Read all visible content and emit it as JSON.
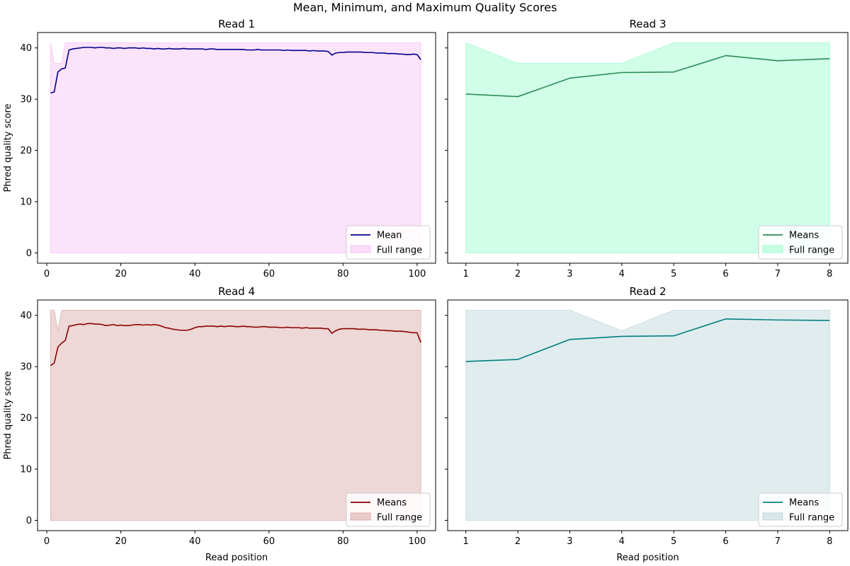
{
  "figure": {
    "title": "Mean, Minimum, and Maximum Quality Scores"
  },
  "chart_data": [
    {
      "type": "line",
      "panel": "top-left",
      "title": "Read 1",
      "xlabel": "",
      "ylabel": "Phred quality score",
      "xlim": [
        -2.5,
        105
      ],
      "ylim": [
        -2,
        43
      ],
      "xticks": [
        0,
        20,
        40,
        60,
        80,
        100
      ],
      "yticks": [
        0,
        10,
        20,
        30,
        40
      ],
      "color": "#00008b",
      "fill_color": "#f4aef0",
      "legend_position": "lower-right",
      "series": [
        {
          "name": "Mean",
          "x": [
            1,
            2,
            3,
            4,
            5,
            6,
            7,
            8,
            9,
            10,
            11,
            12,
            13,
            14,
            15,
            16,
            17,
            18,
            19,
            20,
            21,
            22,
            23,
            24,
            25,
            26,
            27,
            28,
            29,
            30,
            31,
            32,
            33,
            34,
            35,
            36,
            37,
            38,
            39,
            40,
            41,
            42,
            43,
            44,
            45,
            46,
            47,
            48,
            49,
            50,
            51,
            52,
            53,
            54,
            55,
            56,
            57,
            58,
            59,
            60,
            61,
            62,
            63,
            64,
            65,
            66,
            67,
            68,
            69,
            70,
            71,
            72,
            73,
            74,
            75,
            76,
            77,
            78,
            79,
            80,
            81,
            82,
            83,
            84,
            85,
            86,
            87,
            88,
            89,
            90,
            91,
            92,
            93,
            94,
            95,
            96,
            97,
            98,
            99,
            100,
            101
          ],
          "values": [
            31.2,
            31.4,
            35.3,
            35.9,
            36.1,
            39.6,
            39.8,
            39.9,
            40.0,
            40.1,
            40.1,
            40.1,
            40.0,
            40.1,
            40.1,
            40.0,
            40.0,
            39.9,
            40.0,
            40.0,
            39.9,
            40.0,
            40.0,
            40.0,
            39.9,
            40.0,
            39.9,
            39.9,
            39.8,
            39.9,
            39.8,
            39.8,
            39.9,
            39.8,
            39.8,
            39.8,
            39.9,
            39.8,
            39.8,
            39.8,
            39.8,
            39.8,
            39.7,
            39.8,
            39.8,
            39.7,
            39.7,
            39.7,
            39.7,
            39.7,
            39.7,
            39.7,
            39.7,
            39.6,
            39.6,
            39.6,
            39.7,
            39.6,
            39.6,
            39.6,
            39.6,
            39.6,
            39.6,
            39.5,
            39.6,
            39.5,
            39.5,
            39.5,
            39.5,
            39.5,
            39.4,
            39.5,
            39.4,
            39.4,
            39.4,
            39.3,
            38.6,
            39.0,
            39.1,
            39.1,
            39.2,
            39.2,
            39.2,
            39.2,
            39.2,
            39.1,
            39.1,
            39.1,
            39.0,
            39.0,
            39.0,
            38.9,
            38.9,
            38.9,
            38.8,
            38.8,
            38.7,
            38.7,
            38.8,
            38.7,
            37.7
          ]
        }
      ],
      "range_label": "Full range",
      "range_min": {
        "x": [
          1,
          101
        ],
        "values": [
          0,
          0
        ]
      },
      "range_max": {
        "x": [
          1,
          2,
          3,
          4,
          5,
          101
        ],
        "values": [
          41,
          37,
          37,
          37,
          41,
          41
        ]
      }
    },
    {
      "type": "line",
      "panel": "top-right",
      "title": "Read 3",
      "xlabel": "",
      "ylabel": "",
      "xlim": [
        0.65,
        8.35
      ],
      "ylim": [
        -2,
        43
      ],
      "xticks": [
        1,
        2,
        3,
        4,
        5,
        6,
        7,
        8
      ],
      "yticks": [
        0,
        10,
        20,
        30,
        40
      ],
      "color": "#2e8b57",
      "fill_color": "#7cfdbe",
      "legend_position": "lower-right",
      "series": [
        {
          "name": "Means",
          "x": [
            1,
            2,
            3,
            4,
            5,
            6,
            7,
            8
          ],
          "values": [
            31.0,
            30.5,
            34.1,
            35.2,
            35.3,
            38.5,
            37.5,
            37.9
          ]
        }
      ],
      "range_label": "Full range",
      "range_min": {
        "x": [
          1,
          8
        ],
        "values": [
          0,
          0
        ]
      },
      "range_max": {
        "x": [
          1,
          2,
          3,
          4,
          5,
          6,
          7,
          8
        ],
        "values": [
          41,
          37,
          37,
          37,
          41,
          41,
          41,
          41
        ]
      }
    },
    {
      "type": "line",
      "panel": "bottom-left",
      "title": "Read 4",
      "xlabel": "Read position",
      "ylabel": "Phred quality score",
      "xlim": [
        -2.5,
        105
      ],
      "ylim": [
        -2,
        43
      ],
      "xticks": [
        0,
        20,
        40,
        60,
        80,
        100
      ],
      "yticks": [
        0,
        10,
        20,
        30,
        40
      ],
      "color": "#8b0000",
      "fill_color": "#cd8c8c",
      "legend_position": "lower-right",
      "series": [
        {
          "name": "Means",
          "x": [
            1,
            2,
            3,
            4,
            5,
            6,
            7,
            8,
            9,
            10,
            11,
            12,
            13,
            14,
            15,
            16,
            17,
            18,
            19,
            20,
            21,
            22,
            23,
            24,
            25,
            26,
            27,
            28,
            29,
            30,
            31,
            32,
            33,
            34,
            35,
            36,
            37,
            38,
            39,
            40,
            41,
            42,
            43,
            44,
            45,
            46,
            47,
            48,
            49,
            50,
            51,
            52,
            53,
            54,
            55,
            56,
            57,
            58,
            59,
            60,
            61,
            62,
            63,
            64,
            65,
            66,
            67,
            68,
            69,
            70,
            71,
            72,
            73,
            74,
            75,
            76,
            77,
            78,
            79,
            80,
            81,
            82,
            83,
            84,
            85,
            86,
            87,
            88,
            89,
            90,
            91,
            92,
            93,
            94,
            95,
            96,
            97,
            98,
            99,
            100,
            101
          ],
          "values": [
            30.2,
            30.7,
            33.8,
            34.6,
            35.1,
            37.9,
            38.0,
            38.2,
            38.3,
            38.2,
            38.4,
            38.4,
            38.3,
            38.3,
            38.2,
            38.0,
            38.1,
            38.2,
            38.0,
            38.1,
            38.0,
            38.0,
            38.1,
            38.2,
            38.2,
            38.1,
            38.2,
            38.1,
            38.2,
            38.1,
            37.9,
            37.6,
            37.5,
            37.3,
            37.2,
            37.1,
            37.1,
            37.1,
            37.3,
            37.6,
            37.8,
            37.8,
            37.9,
            37.9,
            37.9,
            37.8,
            37.9,
            37.8,
            37.9,
            37.9,
            37.8,
            37.8,
            37.9,
            37.8,
            37.8,
            37.7,
            37.7,
            37.8,
            37.8,
            37.7,
            37.7,
            37.7,
            37.6,
            37.6,
            37.7,
            37.6,
            37.6,
            37.6,
            37.5,
            37.6,
            37.5,
            37.5,
            37.5,
            37.5,
            37.4,
            37.4,
            36.5,
            37.0,
            37.3,
            37.4,
            37.4,
            37.4,
            37.4,
            37.3,
            37.3,
            37.3,
            37.2,
            37.2,
            37.2,
            37.1,
            37.1,
            37.0,
            37.0,
            36.9,
            36.9,
            36.9,
            36.8,
            36.7,
            36.6,
            36.6,
            34.7
          ]
        }
      ],
      "range_label": "Full range",
      "range_min": {
        "x": [
          1,
          101
        ],
        "values": [
          0,
          0
        ]
      },
      "range_max": {
        "x": [
          1,
          2,
          3,
          4,
          101
        ],
        "values": [
          41,
          41,
          37,
          41,
          41
        ]
      }
    },
    {
      "type": "line",
      "panel": "bottom-right",
      "title": "Read 2",
      "xlabel": "Read position",
      "ylabel": "",
      "xlim": [
        0.65,
        8.35
      ],
      "ylim": [
        -2,
        43
      ],
      "xticks": [
        1,
        2,
        3,
        4,
        5,
        6,
        7,
        8
      ],
      "yticks": [
        0,
        10,
        20,
        30,
        40
      ],
      "color": "#008080",
      "fill_color": "#a9c9ce",
      "legend_position": "lower-right",
      "series": [
        {
          "name": "Means",
          "x": [
            1,
            2,
            3,
            4,
            5,
            6,
            7,
            8
          ],
          "values": [
            31.0,
            31.4,
            35.3,
            35.9,
            36.0,
            39.3,
            39.1,
            39.0
          ]
        }
      ],
      "range_label": "Full range",
      "range_min": {
        "x": [
          1,
          8
        ],
        "values": [
          0,
          0
        ]
      },
      "range_max": {
        "x": [
          1,
          2,
          3,
          4,
          5,
          6,
          7,
          8
        ],
        "values": [
          41,
          41,
          41,
          37,
          41,
          41,
          41,
          41
        ]
      }
    }
  ]
}
